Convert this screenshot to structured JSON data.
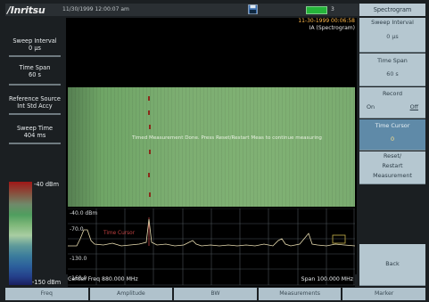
{
  "header": {
    "brand": "/Inritsu",
    "datetime": "11/30/1999 12:00:07 am",
    "battery_count": "3",
    "icons": {
      "save": "floppy-disk-icon"
    }
  },
  "display": {
    "header_datetime": "11-30-1999 00:06:58",
    "header_mode": "IA (Spectrogram)",
    "waterfall_message": "Timed Measurement Done. Press Reset/Restart Meas to continue measuring",
    "marker_label": "Time Cursor",
    "ref_levels": [
      "-40.0 dBm",
      "-70.0",
      "-130.0",
      "-160.0"
    ],
    "center_freq": "Center Freq 880.000 MHz",
    "span": "Span 100.000 MHz"
  },
  "left_panel": {
    "sweep_interval_label": "Sweep Interval",
    "sweep_interval_value": "0 µs",
    "time_span_label": "Time Span",
    "time_span_value": "60 s",
    "ref_source_label": "Reference Source",
    "ref_source_value": "Int Std Accy",
    "sweep_time_label": "Sweep Time",
    "sweep_time_value": "404 ms",
    "scale_top": "-40 dBm",
    "scale_bottom": "-150 dBm"
  },
  "right_panel": {
    "title": "Spectrogram",
    "softkeys": [
      {
        "label": "Sweep Interval",
        "value": "0 µs"
      },
      {
        "label": "Time Span",
        "value": "60 s"
      },
      {
        "label": "Record",
        "on": "On",
        "off": "Off"
      },
      {
        "label": "Time Cursor",
        "value": "0"
      },
      {
        "label": "Reset/",
        "label2": "Restart",
        "label3": "Measurement"
      },
      {
        "label": "Back"
      }
    ]
  },
  "bottom_tabs": [
    "Freq",
    "Amplitude",
    "BW",
    "Measurements",
    "Marker"
  ],
  "colors": {
    "brand_bg": "#2a2f33",
    "softkey_bg": "#b5c7d0",
    "softkey_active": "#5f8aa8",
    "trace": "#e8dcb0",
    "waterfall_green": "#7dae72",
    "marker": "#c04040"
  }
}
